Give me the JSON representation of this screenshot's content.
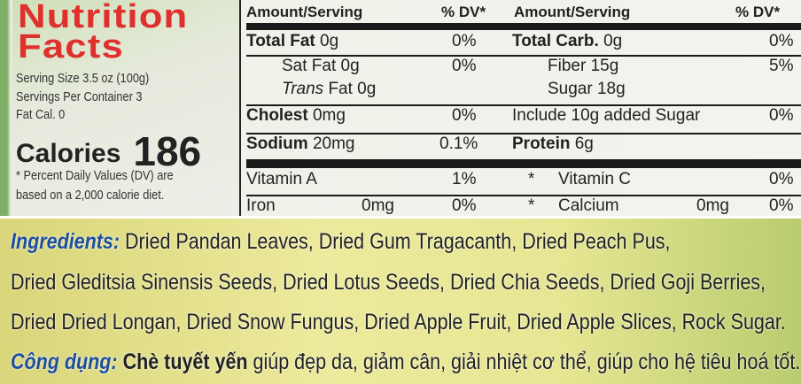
{
  "label": {
    "title_line1": "Nutrition",
    "title_line2": "Facts",
    "serving_size": "Serving Size 3.5 oz (100g)",
    "servings_per_container": "Servings Per Container 3",
    "fat_cal": "Fat Cal. 0",
    "calories_label": "Calories",
    "calories_value": "186",
    "footnote_line1": "* Percent Daily Values (DV) are",
    "footnote_line2": "based on a 2,000 calorie diet.",
    "header": {
      "amount_left": "Amount/Serving",
      "dv_left": "% DV*",
      "amount_right": "Amount/Serving",
      "dv_right": "% DV*"
    },
    "rows": [
      {
        "left": "Total Fat",
        "left_val": "0g",
        "left_dv": "0%",
        "right": "Total Carb.",
        "right_val": "0g",
        "right_dv": "0%"
      },
      {
        "left": "Sat Fat",
        "left_val": "0g",
        "left_dv": "0%",
        "right": "Fiber",
        "right_val": "15g",
        "right_dv": "5%"
      },
      {
        "left": "Trans",
        "left_val": "Fat 0g",
        "left_dv": "",
        "right": "Sugar",
        "right_val": "18g",
        "right_dv": ""
      },
      {
        "left": "Cholest",
        "left_val": "0mg",
        "left_dv": "0%",
        "right": "Include 10g  added Sugar",
        "right_val": "",
        "right_dv": "0%"
      },
      {
        "left": "Sodium",
        "left_val": "20mg",
        "left_dv": "0.1%",
        "right": "Protein",
        "right_val": "6g",
        "right_dv": ""
      }
    ],
    "vitamins": [
      {
        "left": "Vitamin A",
        "left_val": "",
        "left_dv": "1%",
        "sep": "*",
        "right": "Vitamin C",
        "right_val": "",
        "right_dv": "0%"
      },
      {
        "left": "Iron",
        "left_val": "0mg",
        "left_dv": "0%",
        "sep": "*",
        "right": "Calcium",
        "right_val": "0mg",
        "right_dv": "0%"
      }
    ]
  },
  "ingredients": {
    "label": "Ingredients:",
    "line1": "Dried Pandan Leaves, Dried Gum Tragacanth, Dried Peach Pus,",
    "line2": "Dried Gleditsia Sinensis Seeds, Dried Lotus Seeds, Dried Chia Seeds, Dried Goji Berries,",
    "line3": "Dried Dried Longan, Dried Snow Fungus, Dried Apple Fruit, Dried Apple Slices, Rock Sugar.",
    "usage_label": "Công dụng:",
    "usage_bold": "Chè tuyết yến",
    "usage_text": "giúp đẹp da, giảm cân, giải nhiệt cơ thể, giúp cho hệ tiêu hoá tốt."
  }
}
